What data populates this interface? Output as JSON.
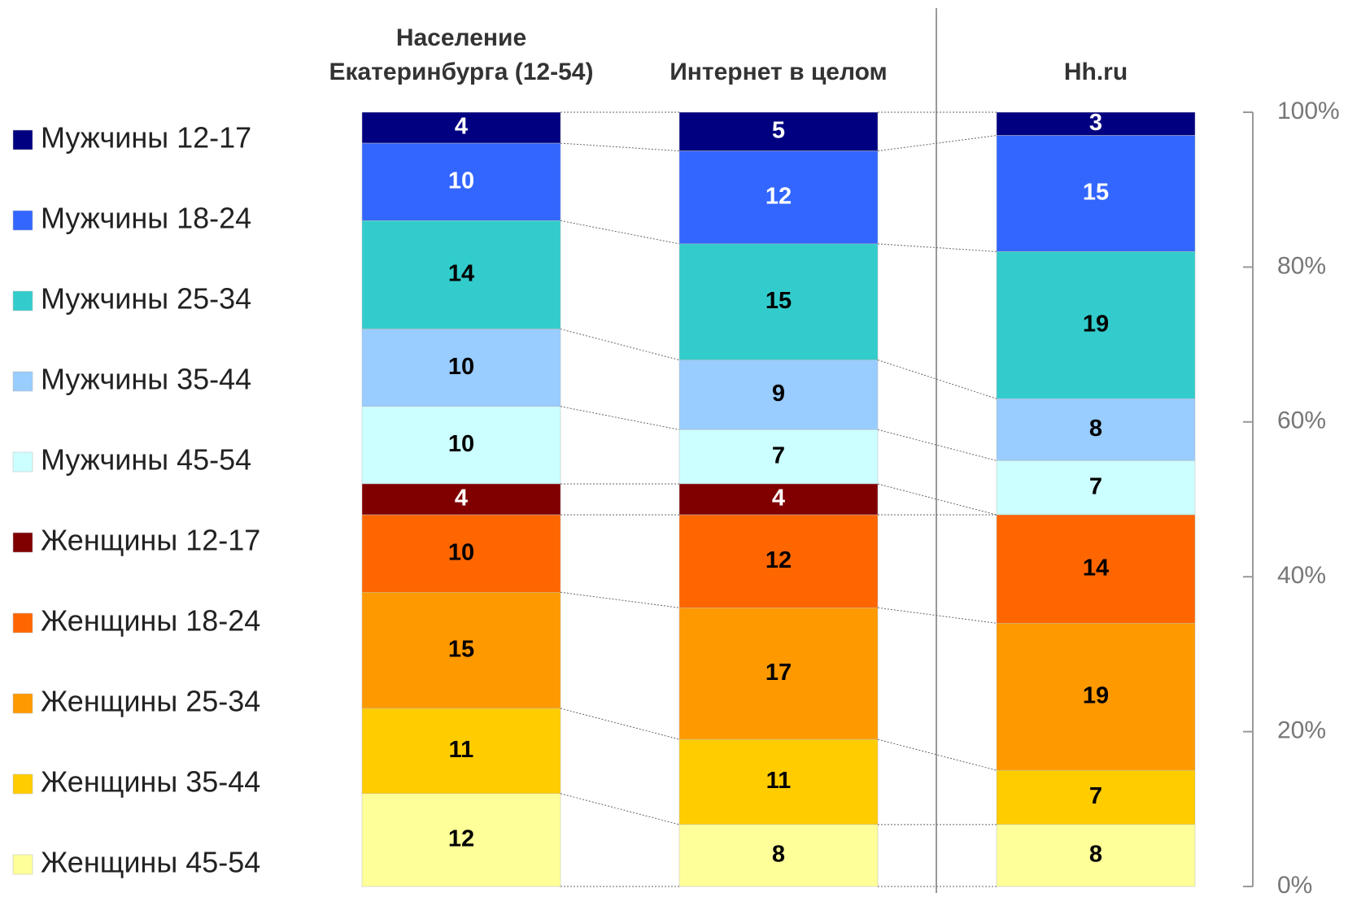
{
  "chart_data": {
    "type": "stacked-bar-100",
    "categories": [
      "Население\nЕкатеринбурга (12-54)",
      "Интернет в целом",
      "Hh.ru"
    ],
    "series": [
      {
        "name": "Мужчины 12-17",
        "color": "#000080",
        "values": [
          4,
          5,
          3
        ]
      },
      {
        "name": "Мужчины 18-24",
        "color": "#3366ff",
        "values": [
          10,
          12,
          15
        ]
      },
      {
        "name": "Мужчины 25-34",
        "color": "#33cccc",
        "values": [
          14,
          15,
          19
        ]
      },
      {
        "name": "Мужчины 35-44",
        "color": "#99ccff",
        "values": [
          10,
          9,
          8
        ]
      },
      {
        "name": "Мужчины 45-54",
        "color": "#ccffff",
        "values": [
          10,
          7,
          7
        ]
      },
      {
        "name": "Женщины 12-17",
        "color": "#800000",
        "values": [
          4,
          4,
          null
        ]
      },
      {
        "name": "Женщины 18-24",
        "color": "#ff6600",
        "values": [
          10,
          12,
          14
        ]
      },
      {
        "name": "Женщины 25-34",
        "color": "#ff9900",
        "values": [
          15,
          17,
          19
        ]
      },
      {
        "name": "Женщины 35-44",
        "color": "#ffcc00",
        "values": [
          11,
          11,
          7
        ]
      },
      {
        "name": "Женщины 45-54",
        "color": "#ffff99",
        "values": [
          12,
          8,
          8
        ]
      }
    ],
    "ylim": [
      0,
      100
    ],
    "yticks": [
      {
        "value": 0,
        "label": "0%"
      },
      {
        "value": 20,
        "label": "20%"
      },
      {
        "value": 40,
        "label": "40%"
      },
      {
        "value": 60,
        "label": "60%"
      },
      {
        "value": 80,
        "label": "80%"
      },
      {
        "value": 100,
        "label": "100%"
      }
    ],
    "legend": "left"
  }
}
